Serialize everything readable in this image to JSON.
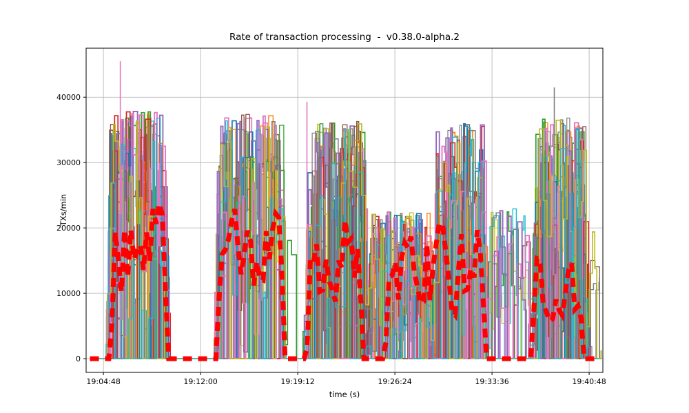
{
  "figure": {
    "background": "#ffffff"
  },
  "chart_data": {
    "type": "line",
    "title": "Rate of transaction processing  -  v0.38.0-alpha.2",
    "xlabel": "time (s)",
    "ylabel": "TXs/min",
    "x_tick_labels": [
      "19:04:48",
      "19:12:00",
      "19:19:12",
      "19:26:24",
      "19:33:36",
      "19:40:48"
    ],
    "x_tick_seconds": [
      0,
      432,
      864,
      1296,
      1728,
      2160
    ],
    "y_ticks": [
      0,
      10000,
      20000,
      30000,
      40000
    ],
    "y_tick_labels": [
      "0",
      "10000",
      "20000",
      "30000",
      "40000"
    ],
    "ylim": [
      -2100,
      47500
    ],
    "xlim_seconds": [
      -77,
      2221
    ],
    "grid": true,
    "grid_color": "#b0b0b0",
    "axis_color": "#000000",
    "legend": "none",
    "series_palette": [
      "#1f77b4",
      "#ff7f0e",
      "#2ca02c",
      "#d62728",
      "#9467bd",
      "#8c564b",
      "#e377c2",
      "#7f7f7f",
      "#bcbd22",
      "#17becf"
    ],
    "n_background_series": 20,
    "seed": 42,
    "description": "Many thin noisy step-line series forming five dense activity bursts separated by near-zero gaps, with a thick dashed red aggregate series oscillating roughly 5000-30000 TXs/min inside bursts and dropping to 0 between them.",
    "bursts": [
      [
        10,
        280,
        38000,
        0.85
      ],
      [
        280,
        375,
        21000,
        0.12
      ],
      [
        490,
        800,
        37500,
        0.85
      ],
      [
        800,
        890,
        26000,
        0.15
      ],
      [
        890,
        1170,
        36500,
        0.8
      ],
      [
        1170,
        1460,
        22500,
        0.7
      ],
      [
        1460,
        1700,
        36000,
        0.8
      ],
      [
        1700,
        1900,
        23000,
        0.25
      ],
      [
        1900,
        2150,
        37000,
        0.85
      ],
      [
        2150,
        2215,
        22500,
        0.15
      ]
    ],
    "spikes": [
      {
        "t": 75,
        "value": 45500,
        "color": "#e377c2"
      },
      {
        "t": 905,
        "value": 39300,
        "color": "#e377c2"
      },
      {
        "t": 2005,
        "value": 41500,
        "color": "#7f7f7f"
      }
    ],
    "aggregate_series": {
      "name": "aggregate",
      "color": "#ff0000",
      "style": "dashed",
      "linewidth": 7,
      "dash": "13 9",
      "bursts": [
        [
          30,
          280,
          29000
        ],
        [
          500,
          800,
          27000
        ],
        [
          900,
          1150,
          27000
        ],
        [
          1250,
          1700,
          26000
        ],
        [
          1900,
          2130,
          24000
        ]
      ]
    }
  }
}
